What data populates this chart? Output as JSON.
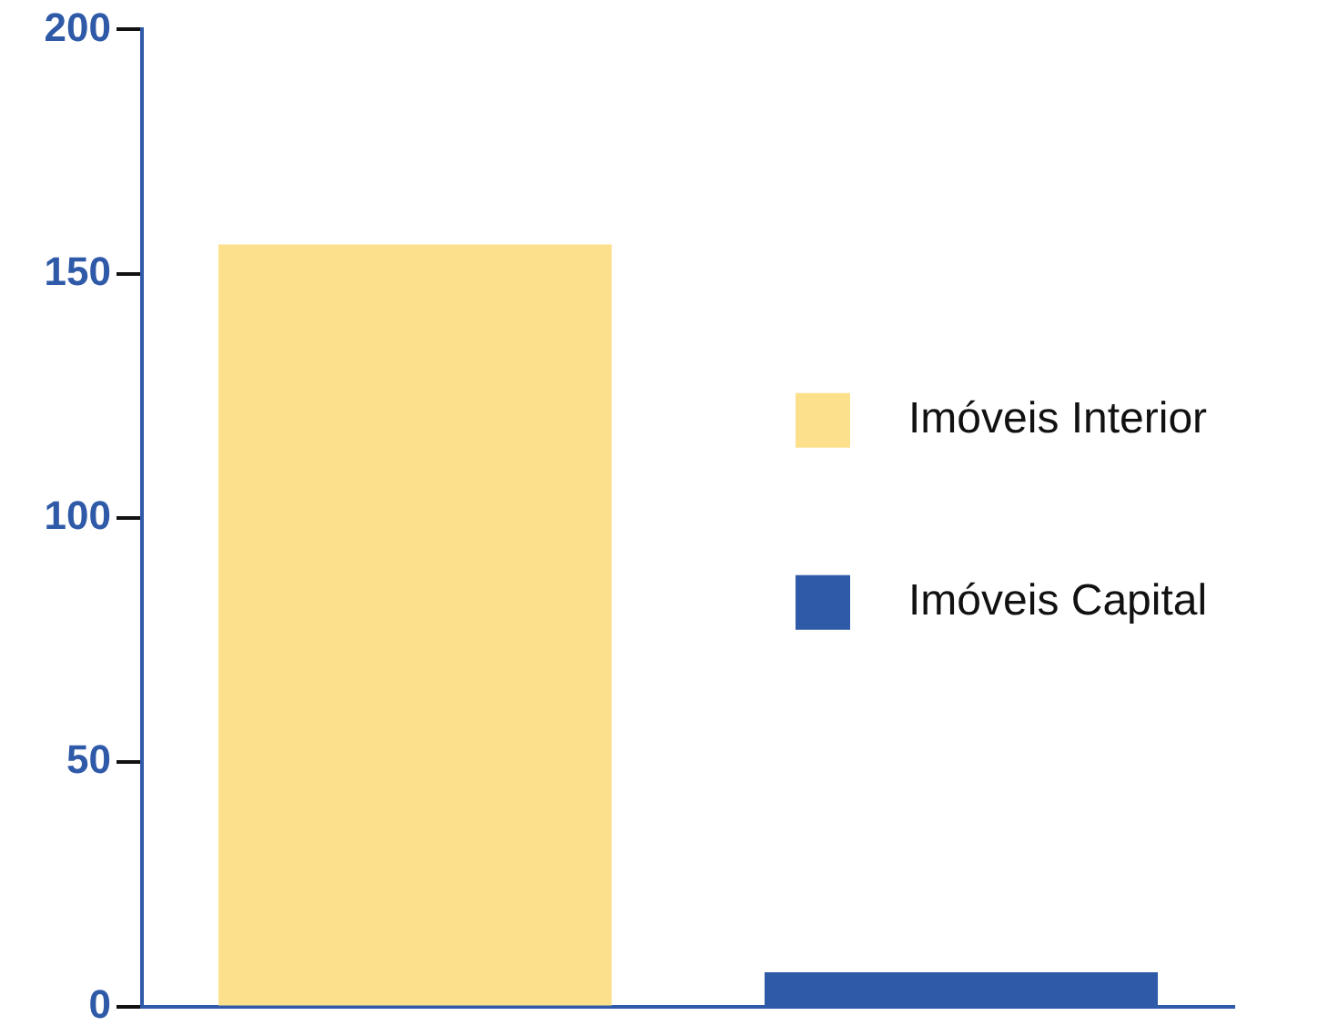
{
  "chart_data": {
    "type": "bar",
    "categories": [
      null,
      null
    ],
    "series": [
      {
        "name": "Imóveis Interior",
        "color": "#fde08b",
        "values": [
          156,
          null
        ]
      },
      {
        "name": "Imóveis Capital",
        "color": "#2f5aa8",
        "values": [
          null,
          7
        ]
      }
    ],
    "ylim": [
      0,
      200
    ],
    "yticks": [
      0,
      50,
      100,
      150,
      200
    ],
    "grid": false,
    "legend": "right"
  }
}
